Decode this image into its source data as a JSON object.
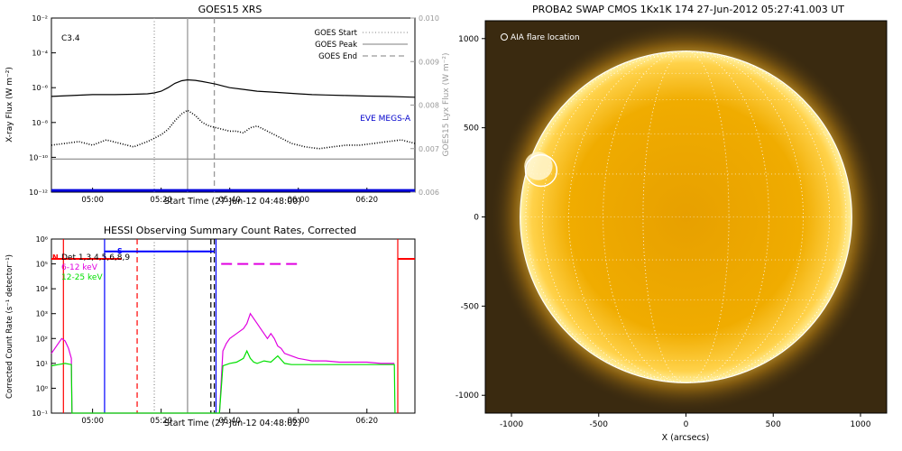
{
  "chart_data": [
    {
      "type": "line",
      "title": "GOES15 XRS",
      "xlabel": "Start Time (27-Jun-12 04:48:00)",
      "ylabel": "X-ray Flux (W m⁻²)",
      "ylabel_right": "GOES15 Lyx Flux (W m⁻²)",
      "xlim_minutes": [
        0,
        106
      ],
      "x_ticks": [
        {
          "label": "05:00",
          "t": 12
        },
        {
          "label": "05:20",
          "t": 32
        },
        {
          "label": "05:40",
          "t": 52
        },
        {
          "label": "06:00",
          "t": 72
        },
        {
          "label": "06:20",
          "t": 92
        }
      ],
      "y_log_range": [
        -12,
        -2
      ],
      "y_ticks": [
        {
          "exp": -2,
          "label": "10⁻²"
        },
        {
          "exp": -4,
          "label": "10⁻⁴"
        },
        {
          "exp": -6,
          "label": "10⁻⁶"
        },
        {
          "exp": -8,
          "label": "10⁻⁸"
        },
        {
          "exp": -10,
          "label": "10⁻¹⁰"
        },
        {
          "exp": -12,
          "label": "10⁻¹²"
        }
      ],
      "right_ylim": [
        0.006,
        0.01
      ],
      "right_ticks": [
        {
          "v": 0.01,
          "label": "0.010"
        },
        {
          "v": 0.009,
          "label": "0.009"
        },
        {
          "v": 0.008,
          "label": "0.008"
        },
        {
          "v": 0.007,
          "label": "0.007"
        },
        {
          "v": 0.006,
          "label": "0.006"
        }
      ],
      "flare_class": "C3.4",
      "markers": [
        {
          "name": "GOES Start",
          "t": 30,
          "style": "dotted"
        },
        {
          "name": "GOES Peak",
          "t": 39.7,
          "style": "solid"
        },
        {
          "name": "GOES End",
          "t": 47.5,
          "style": "dashed"
        }
      ],
      "eve_label": "EVE MEGS-A",
      "series": [
        {
          "color": "#000000",
          "style": "solid",
          "x": [
            0,
            6,
            12,
            18,
            24,
            28,
            30,
            32,
            34,
            36,
            38,
            39.7,
            42,
            44,
            46,
            48,
            50,
            52,
            56,
            60,
            64,
            68,
            72,
            76,
            80,
            86,
            92,
            98,
            106
          ],
          "y": [
            -6.5,
            -6.45,
            -6.4,
            -6.4,
            -6.38,
            -6.35,
            -6.3,
            -6.2,
            -6.0,
            -5.75,
            -5.6,
            -5.55,
            -5.58,
            -5.65,
            -5.72,
            -5.8,
            -5.9,
            -6.0,
            -6.1,
            -6.2,
            -6.25,
            -6.3,
            -6.35,
            -6.4,
            -6.42,
            -6.45,
            -6.48,
            -6.5,
            -6.55
          ]
        },
        {
          "color": "#000000",
          "style": "dotted",
          "x": [
            0,
            4,
            8,
            12,
            16,
            20,
            24,
            28,
            30,
            32,
            34,
            36,
            38,
            39.7,
            42,
            44,
            46,
            48,
            50,
            52,
            54,
            56,
            58,
            60,
            62,
            64,
            66,
            68,
            70,
            74,
            78,
            82,
            86,
            90,
            94,
            98,
            102,
            106
          ],
          "y": [
            -9.3,
            -9.2,
            -9.1,
            -9.3,
            -9.0,
            -9.2,
            -9.4,
            -9.1,
            -8.9,
            -8.7,
            -8.4,
            -7.9,
            -7.5,
            -7.3,
            -7.6,
            -8.0,
            -8.2,
            -8.3,
            -8.4,
            -8.5,
            -8.5,
            -8.6,
            -8.3,
            -8.2,
            -8.4,
            -8.6,
            -8.8,
            -9.0,
            -9.2,
            -9.4,
            -9.5,
            -9.4,
            -9.3,
            -9.3,
            -9.2,
            -9.1,
            -9.0,
            -9.2
          ]
        },
        {
          "color": "#888888",
          "style": "solid",
          "x": [
            0,
            20,
            40,
            60,
            80,
            106
          ],
          "y": [
            -10.1,
            -10.1,
            -10.1,
            -10.1,
            -10.1,
            -10.1
          ]
        },
        {
          "color": "#0000dd",
          "style": "solid",
          "x": [
            0,
            106
          ],
          "y": [
            -11.9,
            -11.9
          ]
        }
      ]
    },
    {
      "type": "line",
      "title": "HESSI Observing Summary Count Rates, Corrected",
      "xlabel": "Start Time (27-Jun-12 04:48:02)",
      "ylabel": "Corrected Count Rate (s⁻¹ detector⁻¹)",
      "xlim_minutes": [
        0,
        106
      ],
      "x_ticks": [
        {
          "label": "05:00",
          "t": 12
        },
        {
          "label": "05:20",
          "t": 32
        },
        {
          "label": "05:40",
          "t": 52
        },
        {
          "label": "06:00",
          "t": 72
        },
        {
          "label": "06:20",
          "t": 92
        }
      ],
      "y_log_range": [
        -1,
        6
      ],
      "y_ticks": [
        {
          "exp": -1,
          "label": "10⁻¹"
        },
        {
          "exp": 0,
          "label": "10⁰"
        },
        {
          "exp": 1,
          "label": "10¹"
        },
        {
          "exp": 2,
          "label": "10²"
        },
        {
          "exp": 3,
          "label": "10³"
        },
        {
          "exp": 4,
          "label": "10⁴"
        },
        {
          "exp": 5,
          "label": "10⁵"
        },
        {
          "exp": 6,
          "label": "10⁶"
        }
      ],
      "legend": [
        {
          "label": "Det 1,3,4,5,6,8,9",
          "color": "#000000"
        },
        {
          "label": "6-12 keV",
          "color": "#e000e0"
        },
        {
          "label": "12-25 keV",
          "color": "#00e000"
        }
      ],
      "flags": [
        {
          "label": "N",
          "color": "#ff0000"
        },
        {
          "label": "S",
          "color": "#0000ff"
        }
      ],
      "series": [
        {
          "name": "6-12 keV",
          "color": "#e000e0",
          "x": [
            0,
            1,
            2,
            3,
            4,
            5,
            5.8,
            6,
            49,
            50,
            51,
            52,
            54,
            56,
            57,
            58,
            59,
            60,
            61,
            62,
            63,
            64,
            65,
            66,
            67,
            68,
            70,
            72,
            74,
            76,
            80,
            84,
            88,
            92,
            96,
            100
          ],
          "y": [
            1.4,
            1.6,
            1.8,
            2.0,
            1.9,
            1.6,
            1.2,
            -1,
            -1,
            1.5,
            1.8,
            2.0,
            2.2,
            2.4,
            2.6,
            3.0,
            2.8,
            2.6,
            2.4,
            2.2,
            2.0,
            2.2,
            2.0,
            1.7,
            1.6,
            1.4,
            1.3,
            1.2,
            1.15,
            1.1,
            1.1,
            1.05,
            1.05,
            1.05,
            1.0,
            1.0
          ]
        },
        {
          "name": "12-25 keV",
          "color": "#00e000",
          "x": [
            0,
            2,
            4,
            5.8,
            6,
            49,
            50,
            52,
            54,
            56,
            57,
            58,
            59,
            60,
            62,
            64,
            66,
            68,
            70,
            72,
            74,
            76,
            80,
            84,
            88,
            92,
            96,
            100,
            100.2
          ],
          "y": [
            0.9,
            0.95,
            1.0,
            0.95,
            -1,
            -1,
            0.9,
            1.0,
            1.05,
            1.2,
            1.5,
            1.2,
            1.05,
            1.0,
            1.1,
            1.05,
            1.3,
            1.0,
            0.95,
            0.95,
            0.95,
            0.95,
            0.95,
            0.95,
            0.95,
            0.95,
            0.95,
            0.95,
            -1
          ]
        }
      ],
      "segments": [
        {
          "color": "#ff0000",
          "style": "solid",
          "x": [
            0,
            20.5
          ],
          "y": [
            5.2,
            5.2
          ]
        },
        {
          "color": "#ff0000",
          "style": "solid",
          "x": [
            101,
            106
          ],
          "y": [
            5.2,
            5.2
          ]
        },
        {
          "color": "#0000ff",
          "style": "solid",
          "x": [
            15.5,
            47.5
          ],
          "y": [
            5.5,
            5.5
          ]
        },
        {
          "color": "#e000e0",
          "style": "dashed",
          "x": [
            49.5,
            73
          ],
          "y": [
            5.0,
            5.0
          ]
        }
      ],
      "vlines": [
        {
          "t": 3.5,
          "color": "#ff0000",
          "style": "solid"
        },
        {
          "t": 15.5,
          "color": "#0000ff",
          "style": "solid"
        },
        {
          "t": 25,
          "color": "#ff0000",
          "style": "dashed"
        },
        {
          "t": 30,
          "color": "#888888",
          "style": "dotted"
        },
        {
          "t": 39.7,
          "color": "#888888",
          "style": "solid"
        },
        {
          "t": 46.5,
          "color": "#000000",
          "style": "dashed"
        },
        {
          "t": 47.5,
          "color": "#000000",
          "style": "dashed"
        },
        {
          "t": 48,
          "color": "#0000ff",
          "style": "solid"
        },
        {
          "t": 101,
          "color": "#ff0000",
          "style": "solid"
        }
      ]
    }
  ],
  "solar_image": {
    "title": "PROBA2 SWAP CMOS 1Kx1K 174 27-Jun-2012 05:27:41.003 UT",
    "legend": "AIA flare location",
    "xlabel": "X (arcsecs)",
    "xlim": [
      -1150,
      1150
    ],
    "ylim": [
      -1100,
      1100
    ],
    "ticks": [
      -1000,
      -500,
      0,
      500,
      1000
    ],
    "solar_radius_arcsec": 950,
    "flare_location": [
      -830,
      260
    ],
    "flare_radius_arcsec": 90,
    "colors": {
      "disk": "#f4b400",
      "background": "#3a2a10",
      "limb": "#ffe070"
    }
  }
}
